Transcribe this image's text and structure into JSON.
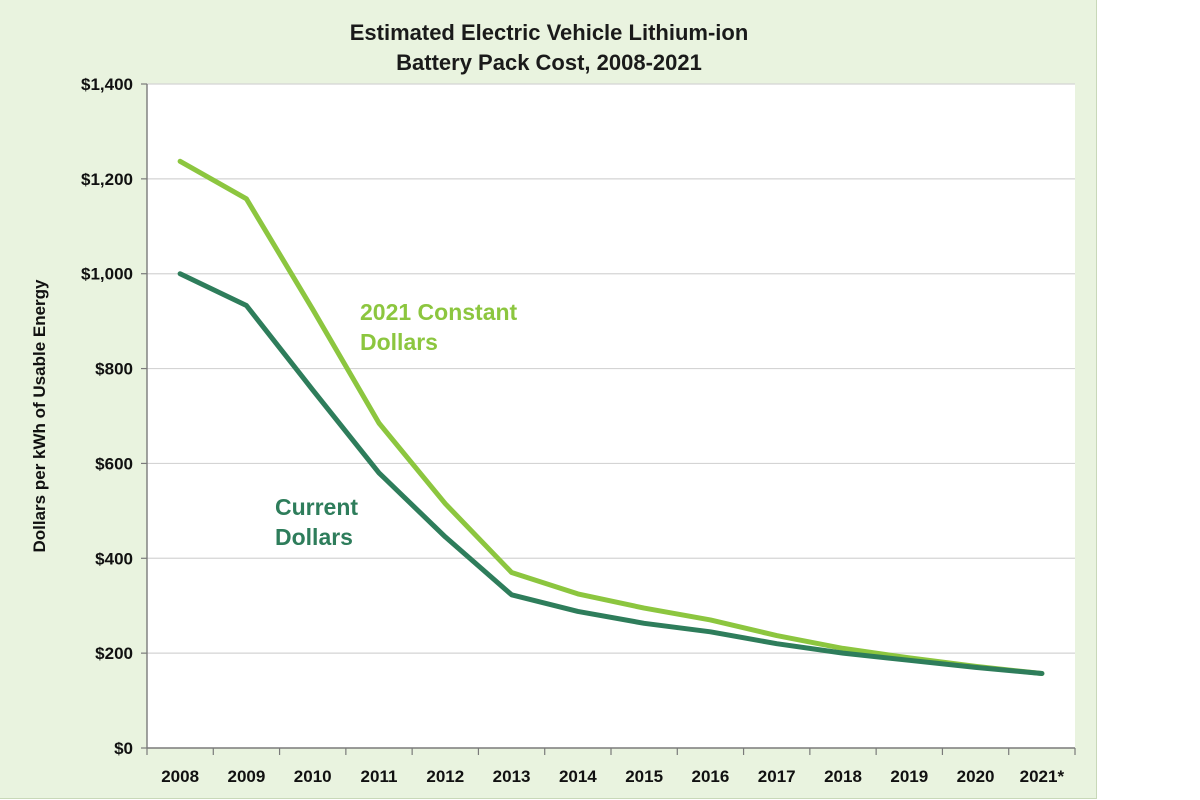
{
  "chart_data": {
    "type": "line",
    "title": [
      "Estimated Electric Vehicle Lithium-ion",
      "Battery Pack Cost, 2008-2021"
    ],
    "xlabel": "",
    "ylabel": "Dollars per kWh of Usable Energy",
    "categories": [
      "2008",
      "2009",
      "2010",
      "2011",
      "2012",
      "2013",
      "2014",
      "2015",
      "2016",
      "2017",
      "2018",
      "2019",
      "2020",
      "2021*"
    ],
    "ylim": [
      0,
      1400
    ],
    "yticks": [
      0,
      200,
      400,
      600,
      800,
      1000,
      1200,
      1400
    ],
    "ytick_labels": [
      "$0",
      "$200",
      "$400",
      "$600",
      "$800",
      "$1,000",
      "$1,200",
      "$1,400"
    ],
    "grid": true,
    "series": [
      {
        "name": "2021 Constant Dollars",
        "label_lines": [
          "2021 Constant",
          "Dollars"
        ],
        "color": "#8cc63f",
        "values": [
          1237,
          1158,
          925,
          685,
          515,
          370,
          325,
          295,
          270,
          237,
          210,
          190,
          172,
          157
        ]
      },
      {
        "name": "Current Dollars",
        "label_lines": [
          "Current",
          "Dollars"
        ],
        "color": "#2e7d5b",
        "values": [
          1000,
          933,
          755,
          580,
          445,
          323,
          288,
          263,
          245,
          220,
          200,
          185,
          170,
          157
        ]
      }
    ]
  }
}
